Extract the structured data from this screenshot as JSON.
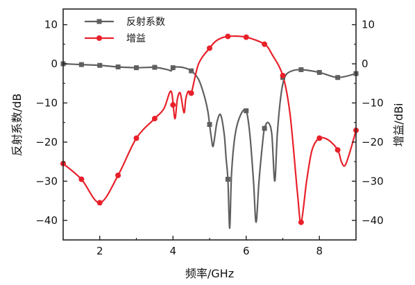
{
  "chart_data": {
    "type": "line",
    "xlabel": "频率/GHz",
    "ylabel_left": "反射系数/dB",
    "ylabel_right": "增益/dBi",
    "xlim": [
      1,
      9
    ],
    "ylim_left": [
      -45,
      14
    ],
    "ylim_right": [
      -45,
      14
    ],
    "xticks": [
      2,
      4,
      6,
      8
    ],
    "yticks": [
      10,
      0,
      -10,
      -20,
      -30,
      -40
    ],
    "legend_position": "top-left",
    "grid": false,
    "series": [
      {
        "name": "反射系数",
        "axis": "left",
        "color": "#5f5f5f",
        "marker": "square",
        "x": [
          1.0,
          1.5,
          2.0,
          2.5,
          3.0,
          3.5,
          3.85,
          3.95,
          4.0,
          4.1,
          4.3,
          4.5,
          4.7,
          4.85,
          4.95,
          5.0,
          5.05,
          5.1,
          5.2,
          5.3,
          5.4,
          5.45,
          5.5,
          5.55,
          5.6,
          5.7,
          5.85,
          6.0,
          6.1,
          6.2,
          6.27,
          6.35,
          6.45,
          6.5,
          6.6,
          6.7,
          6.78,
          6.85,
          6.95,
          7.05,
          7.2,
          7.5,
          8.0,
          8.5,
          9.0
        ],
        "y": [
          0.0,
          -0.2,
          -0.4,
          -0.8,
          -1.0,
          -0.9,
          -1.5,
          -1.8,
          -1.0,
          -0.8,
          -1.0,
          -1.8,
          -4.0,
          -8.0,
          -12.0,
          -15.5,
          -19.0,
          -21.0,
          -15.0,
          -13.0,
          -18.0,
          -24.0,
          -29.5,
          -42.0,
          -28.0,
          -18.0,
          -13.0,
          -12.0,
          -18.0,
          -30.0,
          -40.5,
          -30.0,
          -20.0,
          -16.5,
          -15.0,
          -18.0,
          -30.0,
          -18.0,
          -8.0,
          -3.5,
          -2.0,
          -1.5,
          -2.2,
          -3.5,
          -2.5
        ],
        "marker_x": [
          1.0,
          1.5,
          2.0,
          2.5,
          3.0,
          3.5,
          4.0,
          4.5,
          5.0,
          5.5,
          6.0,
          6.5,
          7.0,
          7.5,
          8.0,
          8.5,
          9.0
        ],
        "marker_y": [
          0.0,
          -0.2,
          -0.4,
          -0.8,
          -1.0,
          -0.9,
          -1.0,
          -1.8,
          -15.5,
          -29.5,
          -12.0,
          -16.5,
          -3.5,
          -1.5,
          -2.2,
          -3.5,
          -2.5
        ]
      },
      {
        "name": "增益",
        "axis": "right",
        "color": "#e8202a",
        "marker": "circle",
        "x": [
          1.0,
          1.5,
          2.0,
          2.5,
          3.0,
          3.5,
          3.75,
          3.95,
          4.05,
          4.12,
          4.2,
          4.3,
          4.35,
          4.42,
          4.5,
          4.7,
          5.0,
          5.2,
          5.5,
          6.0,
          6.5,
          6.7,
          7.0,
          7.2,
          7.4,
          7.5,
          7.65,
          7.8,
          8.0,
          8.25,
          8.5,
          8.6,
          8.7,
          8.85,
          9.0
        ],
        "y": [
          -25.5,
          -29.5,
          -35.5,
          -28.5,
          -19.0,
          -14.0,
          -11.5,
          -7.0,
          -14.0,
          -9.0,
          -7.5,
          -12.5,
          -9.0,
          -7.0,
          -7.5,
          0.0,
          4.0,
          6.0,
          7.0,
          6.8,
          5.0,
          2.5,
          -3.0,
          -13.0,
          -33.0,
          -40.5,
          -30.0,
          -22.0,
          -19.0,
          -19.5,
          -22.0,
          -25.0,
          -26.0,
          -22.0,
          -17.0
        ],
        "marker_x": [
          1.0,
          1.5,
          2.0,
          2.5,
          3.0,
          3.5,
          4.0,
          4.5,
          5.0,
          5.5,
          6.0,
          6.5,
          7.0,
          7.5,
          8.0,
          8.5,
          9.0
        ],
        "marker_y": [
          -25.5,
          -29.5,
          -35.5,
          -28.5,
          -19.0,
          -14.0,
          -10.5,
          -7.5,
          4.0,
          7.0,
          6.8,
          5.0,
          -3.0,
          -40.5,
          -19.0,
          -22.0,
          -17.0
        ]
      }
    ]
  }
}
